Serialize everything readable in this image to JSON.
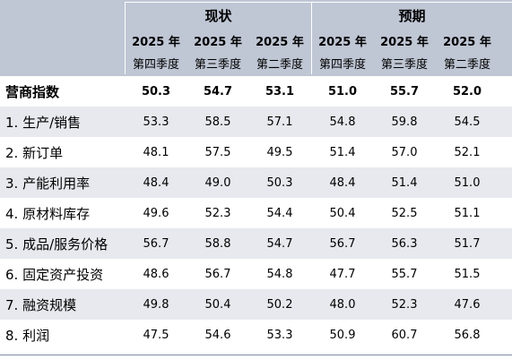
{
  "groups": {
    "current": "现状",
    "expected": "预期"
  },
  "columns": [
    {
      "year": "2025 年",
      "quarter": "第四季度"
    },
    {
      "year": "2025 年",
      "quarter": "第三季度"
    },
    {
      "year": "2025 年",
      "quarter": "第二季度"
    },
    {
      "year": "2025 年",
      "quarter": "第四季度"
    },
    {
      "year": "2025 年",
      "quarter": "第三季度"
    },
    {
      "year": "2025 年",
      "quarter": "第二季度"
    }
  ],
  "rows": [
    {
      "label": "营商指数",
      "values": [
        "50.3",
        "54.7",
        "53.1",
        "51.0",
        "55.7",
        "52.0"
      ]
    },
    {
      "label": "1. 生产/销售",
      "values": [
        "53.3",
        "58.5",
        "57.1",
        "54.8",
        "59.8",
        "54.5"
      ]
    },
    {
      "label": "2. 新订单",
      "values": [
        "48.1",
        "57.5",
        "49.5",
        "51.4",
        "57.0",
        "52.1"
      ]
    },
    {
      "label": "3. 产能利用率",
      "values": [
        "48.4",
        "49.0",
        "50.3",
        "48.4",
        "51.4",
        "51.0"
      ]
    },
    {
      "label": "4. 原材料库存",
      "values": [
        "49.6",
        "52.3",
        "54.4",
        "50.4",
        "52.5",
        "51.1"
      ]
    },
    {
      "label": "5. 成品/服务价格",
      "values": [
        "56.7",
        "58.8",
        "54.7",
        "56.7",
        "56.3",
        "51.7"
      ]
    },
    {
      "label": "6. 固定资产投资",
      "values": [
        "48.6",
        "56.7",
        "54.8",
        "47.7",
        "55.7",
        "51.5"
      ]
    },
    {
      "label": "7. 融资规模",
      "values": [
        "49.8",
        "50.4",
        "50.2",
        "48.0",
        "52.3",
        "47.6"
      ]
    },
    {
      "label": "8. 利润",
      "values": [
        "47.5",
        "54.6",
        "53.3",
        "50.9",
        "60.7",
        "56.8"
      ]
    }
  ]
}
